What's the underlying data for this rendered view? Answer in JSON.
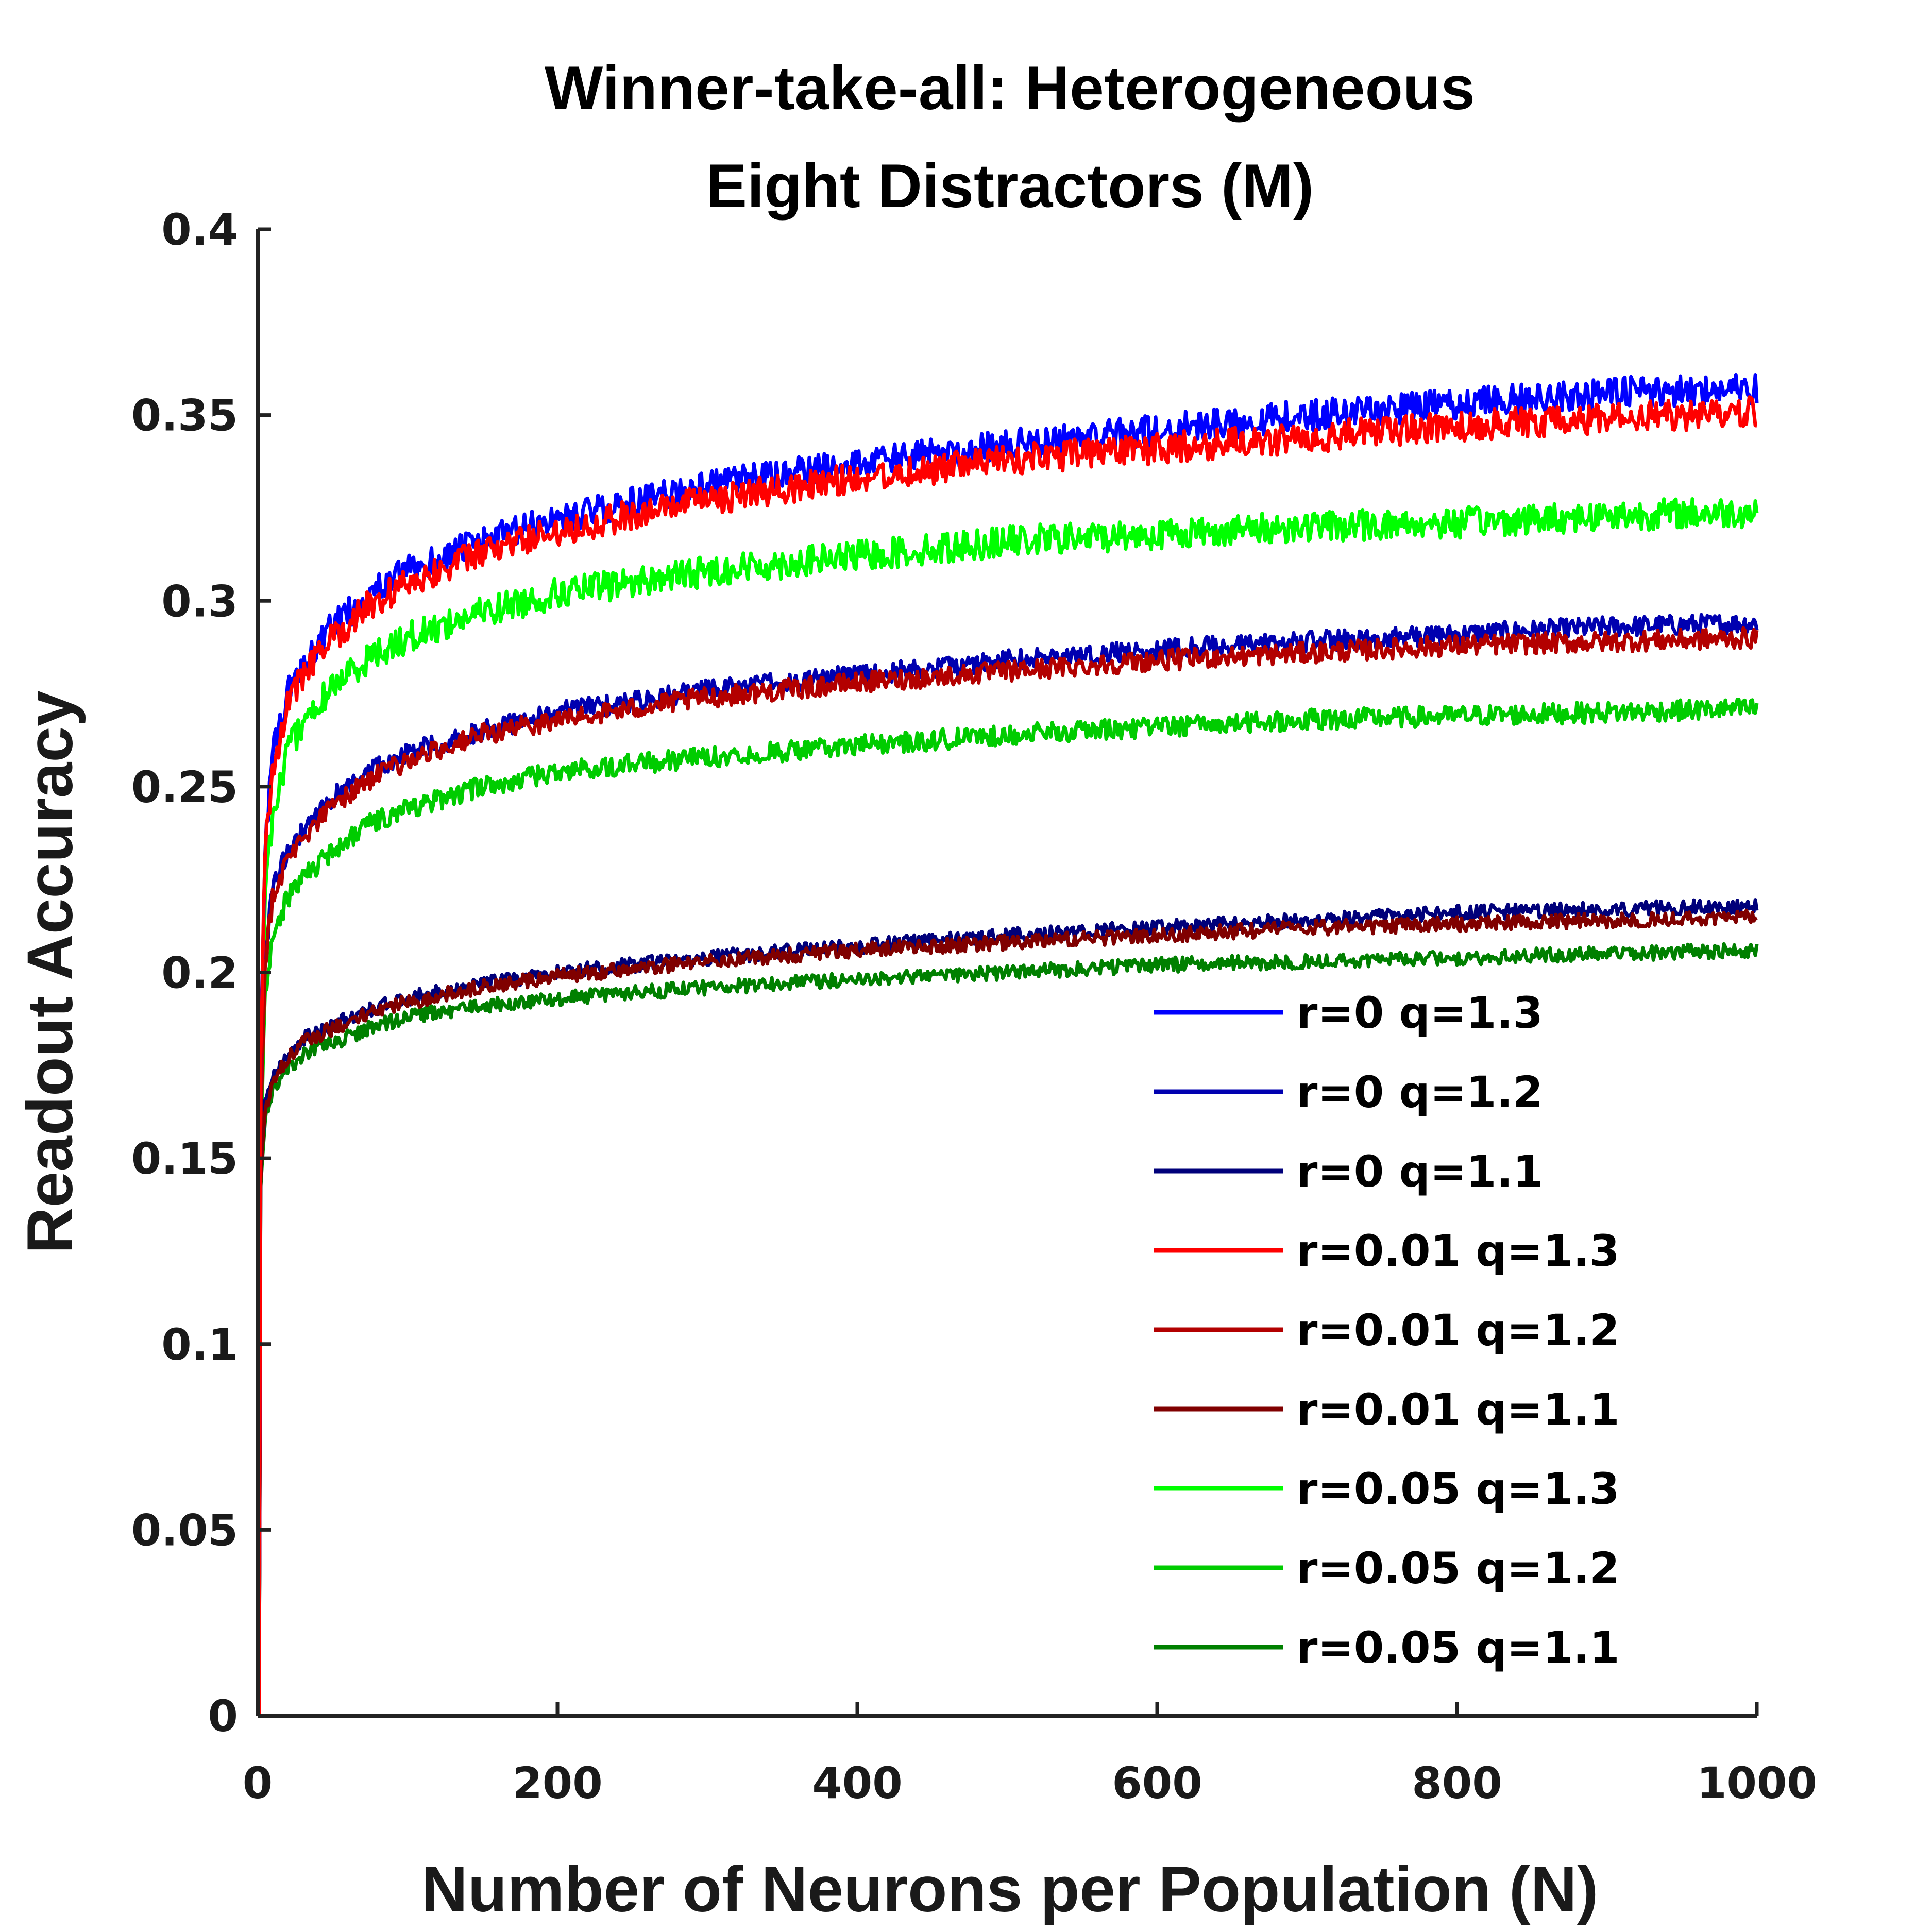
{
  "chart_data": {
    "type": "line",
    "title": [
      "Winner-take-all: Heterogeneous",
      "Eight Distractors (M)"
    ],
    "xlabel": "Number of Neurons per Population (N)",
    "ylabel": "Readout Accuracy",
    "xlim": [
      0,
      1000
    ],
    "ylim": [
      0,
      0.4
    ],
    "xticks": [
      0,
      200,
      400,
      600,
      800,
      1000
    ],
    "xtick_labels": [
      "0",
      "200",
      "400",
      "600",
      "800",
      "1000"
    ],
    "yticks": [
      0,
      0.05,
      0.1,
      0.15,
      0.2,
      0.25,
      0.3,
      0.35,
      0.4
    ],
    "ytick_labels": [
      "0",
      "0.05",
      "0.1",
      "0.15",
      "0.2",
      "0.25",
      "0.3",
      "0.35",
      "0.4"
    ],
    "grid": false,
    "legend_position": "bottom-right",
    "x": [
      1,
      2,
      5,
      10,
      20,
      30,
      50,
      75,
      100,
      150,
      200,
      300,
      400,
      500,
      600,
      700,
      800,
      900,
      1000
    ],
    "series": [
      {
        "name": "r=0 q=1.3",
        "color": "#0000ff",
        "values": [
          0,
          0.18,
          0.235,
          0.258,
          0.275,
          0.283,
          0.293,
          0.302,
          0.308,
          0.316,
          0.322,
          0.331,
          0.337,
          0.342,
          0.346,
          0.35,
          0.353,
          0.356,
          0.357
        ]
      },
      {
        "name": "r=0 q=1.2",
        "color": "#0000b0",
        "values": [
          0,
          0.16,
          0.205,
          0.222,
          0.233,
          0.238,
          0.247,
          0.254,
          0.259,
          0.265,
          0.27,
          0.276,
          0.28,
          0.284,
          0.287,
          0.289,
          0.291,
          0.293,
          0.294
        ]
      },
      {
        "name": "r=0 q=1.1",
        "color": "#00007a",
        "values": [
          0,
          0.145,
          0.164,
          0.171,
          0.178,
          0.182,
          0.186,
          0.19,
          0.193,
          0.197,
          0.2,
          0.204,
          0.207,
          0.21,
          0.212,
          0.214,
          0.216,
          0.217,
          0.218
        ]
      },
      {
        "name": "r=0.01 q=1.3",
        "color": "#ff0000",
        "values": [
          0,
          0.178,
          0.232,
          0.255,
          0.272,
          0.28,
          0.29,
          0.299,
          0.305,
          0.313,
          0.319,
          0.327,
          0.333,
          0.338,
          0.341,
          0.344,
          0.347,
          0.349,
          0.351
        ]
      },
      {
        "name": "r=0.01 q=1.2",
        "color": "#b30000",
        "values": [
          0,
          0.158,
          0.203,
          0.22,
          0.231,
          0.236,
          0.245,
          0.252,
          0.257,
          0.264,
          0.268,
          0.274,
          0.278,
          0.281,
          0.284,
          0.286,
          0.288,
          0.289,
          0.29
        ]
      },
      {
        "name": "r=0.01 q=1.1",
        "color": "#800000",
        "values": [
          0,
          0.144,
          0.163,
          0.17,
          0.177,
          0.181,
          0.185,
          0.189,
          0.192,
          0.196,
          0.199,
          0.203,
          0.206,
          0.208,
          0.21,
          0.212,
          0.213,
          0.214,
          0.215
        ]
      },
      {
        "name": "r=0.05 q=1.3",
        "color": "#00ff00",
        "values": [
          0,
          0.17,
          0.22,
          0.243,
          0.259,
          0.267,
          0.277,
          0.285,
          0.29,
          0.297,
          0.302,
          0.308,
          0.312,
          0.316,
          0.318,
          0.32,
          0.321,
          0.323,
          0.324
        ]
      },
      {
        "name": "r=0.05 q=1.2",
        "color": "#00cc00",
        "values": [
          0,
          0.152,
          0.194,
          0.21,
          0.22,
          0.225,
          0.233,
          0.24,
          0.244,
          0.25,
          0.254,
          0.258,
          0.261,
          0.264,
          0.266,
          0.268,
          0.269,
          0.27,
          0.271
        ]
      },
      {
        "name": "r=0.05 q=1.1",
        "color": "#008000",
        "values": [
          0,
          0.142,
          0.161,
          0.168,
          0.174,
          0.178,
          0.181,
          0.185,
          0.188,
          0.191,
          0.193,
          0.196,
          0.198,
          0.2,
          0.202,
          0.203,
          0.204,
          0.205,
          0.206
        ]
      }
    ]
  }
}
